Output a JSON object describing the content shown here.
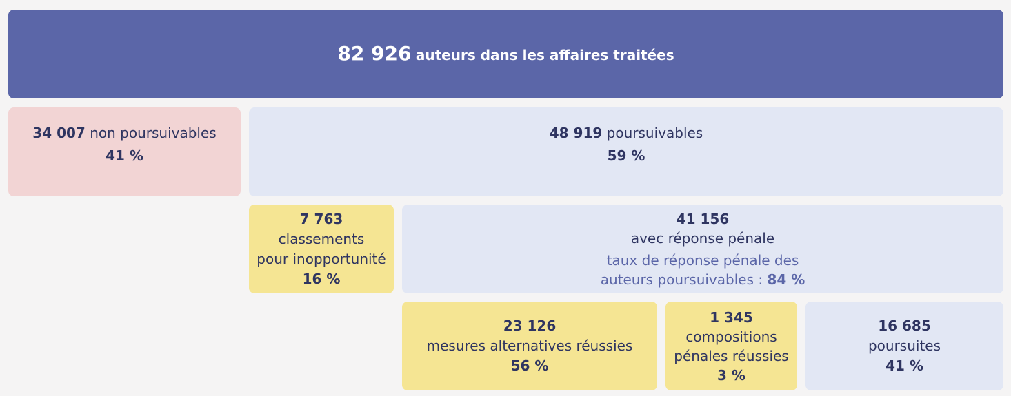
{
  "total": {
    "value": "82 926",
    "label": "auteurs dans les affaires traitées"
  },
  "non_poursuivables": {
    "value": "34 007",
    "label": "non poursuivables",
    "percent": "41 %"
  },
  "poursuivables": {
    "value": "48 919",
    "label": "poursuivables",
    "percent": "59 %"
  },
  "classements": {
    "value": "7 763",
    "label_line1": "classements",
    "label_line2": "pour inopportunité",
    "percent": "16 %"
  },
  "reponse_penale": {
    "value": "41 156",
    "label": "avec réponse pénale",
    "rate_line1": "taux de réponse pénale des",
    "rate_line2": "auteurs poursuivables :",
    "rate_value": "84 %"
  },
  "mesures": {
    "value": "23 126",
    "label": "mesures alternatives réussies",
    "percent": "56 %"
  },
  "compositions": {
    "value": "1 345",
    "label_line1": "compositions",
    "label_line2": "pénales réussies",
    "percent": "3 %"
  },
  "poursuites": {
    "value": "16 685",
    "label": "poursuites",
    "percent": "41 %"
  },
  "colors": {
    "header": "#5b66a8",
    "pink": "#f2d4d4",
    "blue": "#e2e7f4",
    "yellow": "#f5e593",
    "text": "#2f3561"
  }
}
